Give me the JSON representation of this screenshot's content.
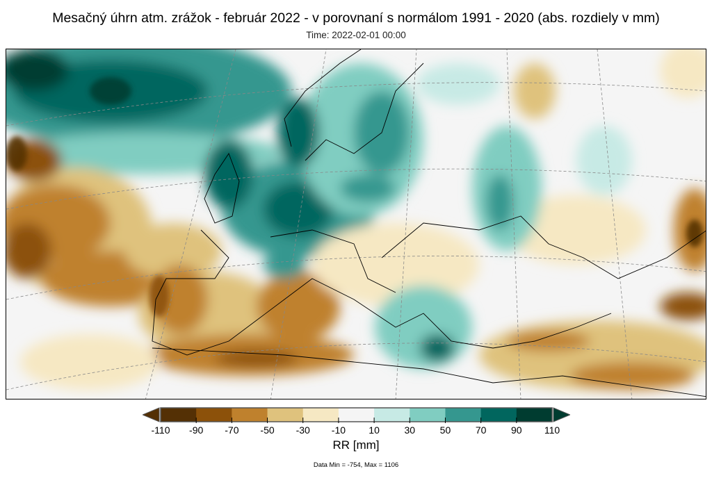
{
  "title": "Mesačný úhrn atm. zrážok - február 2022 - v porovnaní s normálom 1991 - 2020 (abs. rozdiely v mm)",
  "time": "Time: 2022-02-01 00:00",
  "colorbar": {
    "ticks": [
      "-110",
      "-90",
      "-70",
      "-50",
      "-30",
      "-10",
      "10",
      "30",
      "50",
      "70",
      "90",
      "110"
    ],
    "colors": [
      "#543005",
      "#8c510a",
      "#bf812d",
      "#dfc27d",
      "#f6e8c3",
      "#f5f5f5",
      "#c7eae5",
      "#80cdc1",
      "#35978f",
      "#01665e",
      "#003c30"
    ],
    "unit": "RR [mm]"
  },
  "data_stats": "Data Min = -754, Max = 1106"
}
